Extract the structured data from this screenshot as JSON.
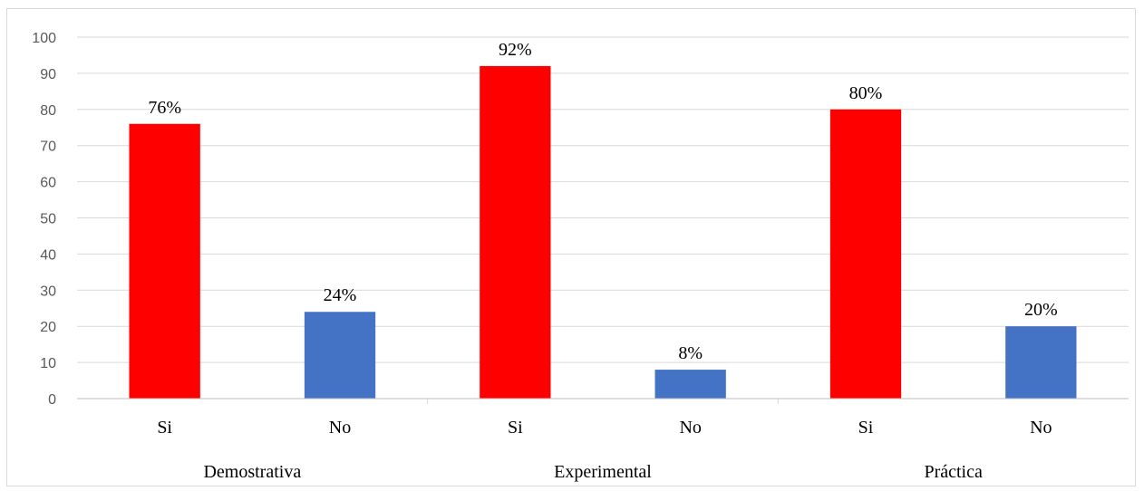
{
  "chart_data": {
    "type": "bar",
    "groups": [
      {
        "name": "Demostrativa",
        "bars": [
          {
            "category": "Si",
            "value": 76,
            "label": "76%",
            "color": "#ff0000"
          },
          {
            "category": "No",
            "value": 24,
            "label": "24%",
            "color": "#4472c4"
          }
        ]
      },
      {
        "name": "Experimental",
        "bars": [
          {
            "category": "Si",
            "value": 92,
            "label": "92%",
            "color": "#ff0000"
          },
          {
            "category": "No",
            "value": 8,
            "label": "8%",
            "color": "#4472c4"
          }
        ]
      },
      {
        "name": "Práctica",
        "bars": [
          {
            "category": "Si",
            "value": 80,
            "label": "80%",
            "color": "#ff0000"
          },
          {
            "category": "No",
            "value": 20,
            "label": "20%",
            "color": "#4472c4"
          }
        ]
      }
    ],
    "ylim": [
      0,
      100
    ],
    "yticks": [
      0,
      10,
      20,
      30,
      40,
      50,
      60,
      70,
      80,
      90,
      100
    ],
    "grid": true,
    "legend": "none",
    "title": "",
    "xlabel": "",
    "ylabel": ""
  }
}
